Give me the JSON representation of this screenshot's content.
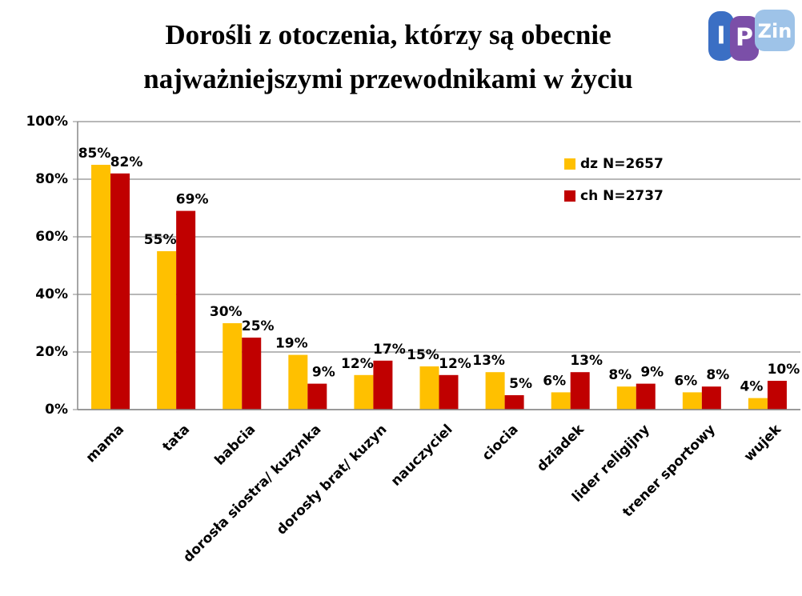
{
  "chart_data": {
    "type": "bar",
    "title": [
      "Dorośli z otoczenia, którzy  są obecnie",
      "najważniejszymi  przewodnikami  w życiu"
    ],
    "logo": {
      "left": "I",
      "mid": "P",
      "right": "Zin"
    },
    "categories": [
      "mama",
      "tata",
      "babcia",
      "dorosła siostra/ kuzynka",
      "dorosły brat/ kuzyn",
      "nauczyciel",
      "ciocia",
      "dziadek",
      "lider religijny",
      "trener sportowy",
      "wujek"
    ],
    "series": [
      {
        "name": "dz N=2657",
        "color": "#FFC000",
        "values": [
          85,
          55,
          30,
          19,
          12,
          15,
          13,
          6,
          8,
          6,
          4
        ],
        "value_labels": [
          "85%",
          "55%",
          "30%",
          "19%",
          "12%",
          "15%",
          "13%",
          "6%",
          "8%",
          "6%",
          "4%"
        ]
      },
      {
        "name": "ch N=2737",
        "color": "#C00000",
        "values": [
          82,
          69,
          25,
          9,
          17,
          12,
          5,
          13,
          9,
          8,
          10
        ],
        "value_labels": [
          "82%",
          "69%",
          "25%",
          "9%",
          "17%",
          "12%",
          "5%",
          "13%",
          "9%",
          "8%",
          "10%"
        ]
      }
    ],
    "ylim": [
      0,
      100
    ],
    "yticks": [
      {
        "value": 0,
        "label": "0%"
      },
      {
        "value": 20,
        "label": "20%"
      },
      {
        "value": 40,
        "label": "40%"
      },
      {
        "value": 60,
        "label": "60%"
      },
      {
        "value": 80,
        "label": "80%"
      },
      {
        "value": 100,
        "label": "100%"
      }
    ],
    "grid": true,
    "legend": "upper right"
  }
}
